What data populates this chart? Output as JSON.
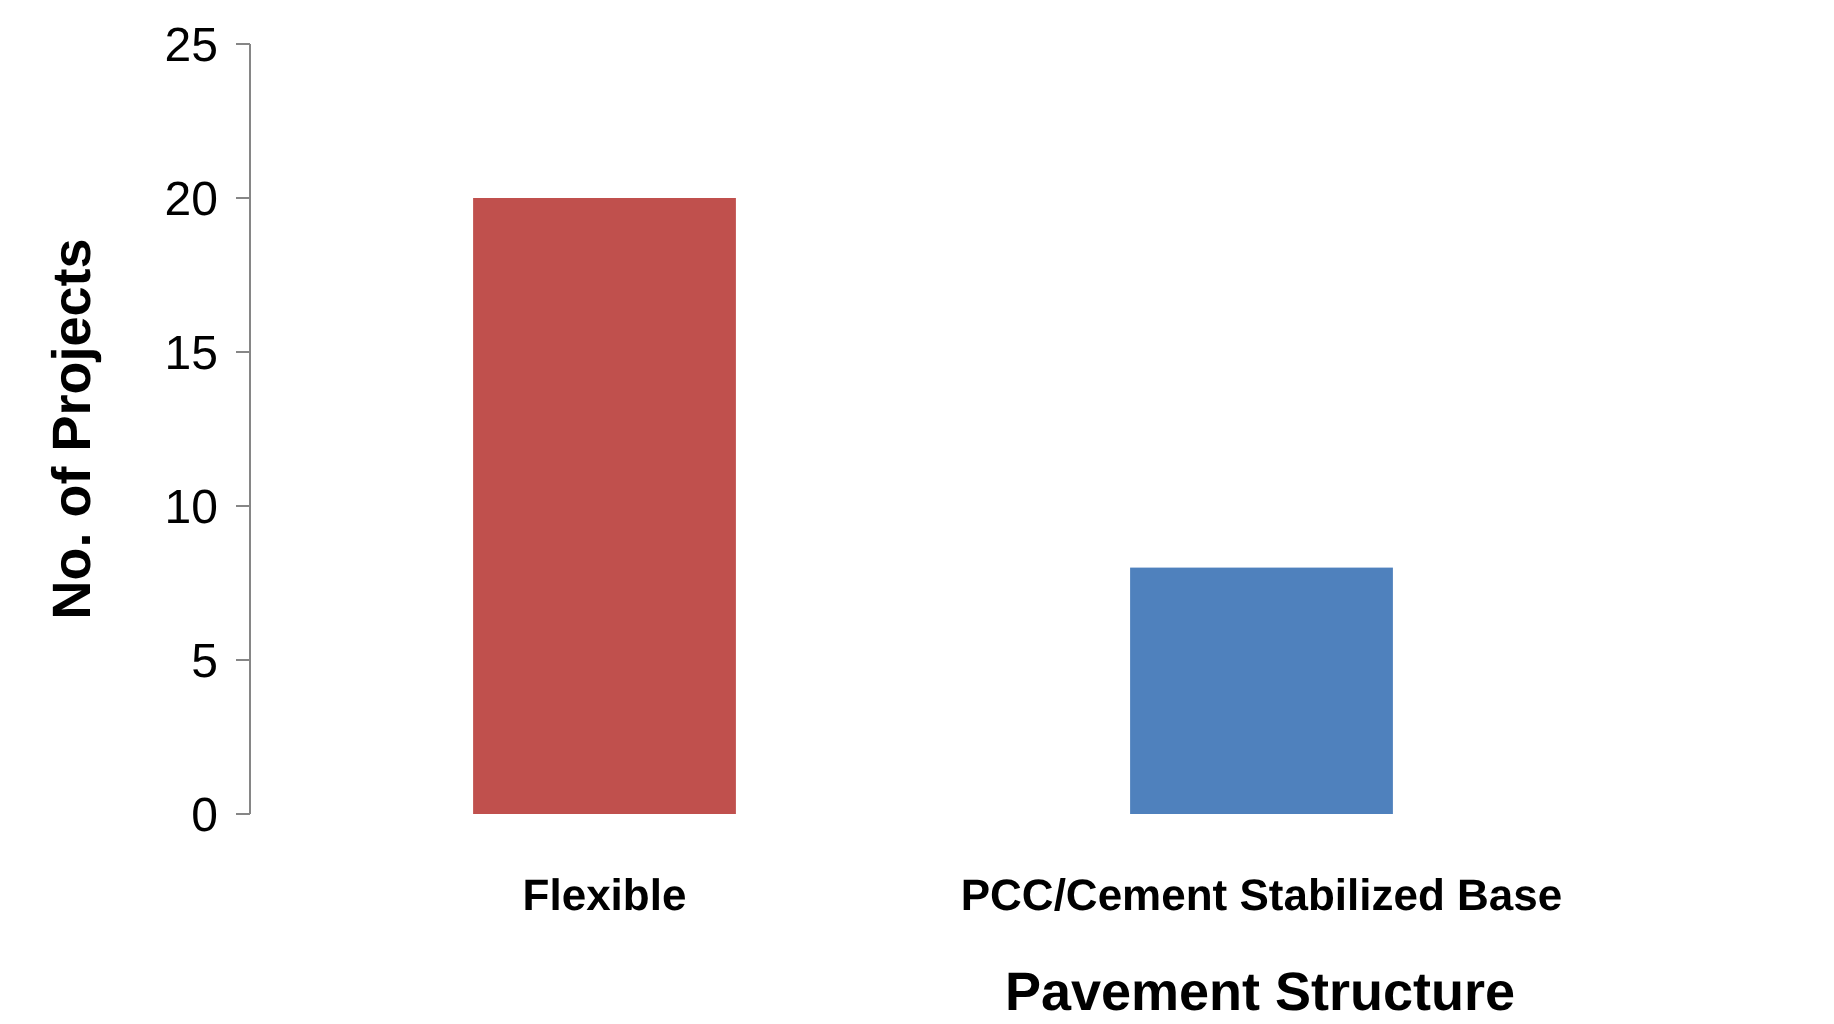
{
  "chart_data": {
    "type": "bar",
    "xlabel": "Pavement Structure",
    "ylabel": "No. of Projects",
    "categories": [
      "Flexible",
      "PCC/Cement Stabilized Base"
    ],
    "values": [
      20,
      8
    ],
    "colors": [
      "#c0504d",
      "#4f81bd"
    ],
    "ylim": [
      0,
      25
    ],
    "yticks": [
      0,
      5,
      10,
      15,
      20,
      25
    ]
  }
}
